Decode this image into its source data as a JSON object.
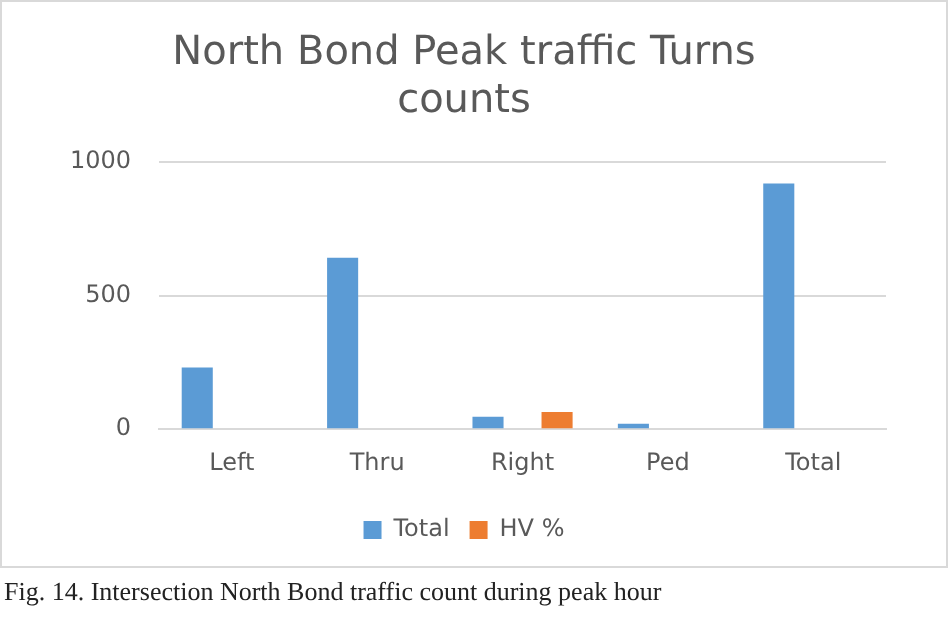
{
  "chart_data": {
    "type": "bar",
    "title": "North Bond Peak traffic Turns counts",
    "categories": [
      "Left",
      "Thru",
      "Right",
      "Ped",
      "Total"
    ],
    "series": [
      {
        "name": "Total",
        "color": "#5b9bd5",
        "values": [
          231,
          642,
          47,
          20,
          920
        ]
      },
      {
        "name": "HV %",
        "color": "#ed7d31",
        "values": [
          null,
          null,
          64,
          null,
          null
        ]
      }
    ],
    "ylim": [
      0,
      1000
    ],
    "yticks": [
      0,
      500,
      1000
    ],
    "grid": "y",
    "legend": "bottom",
    "annotations": [
      "Fig. 14. Intersection North Bond traffic count during peak hour"
    ]
  }
}
